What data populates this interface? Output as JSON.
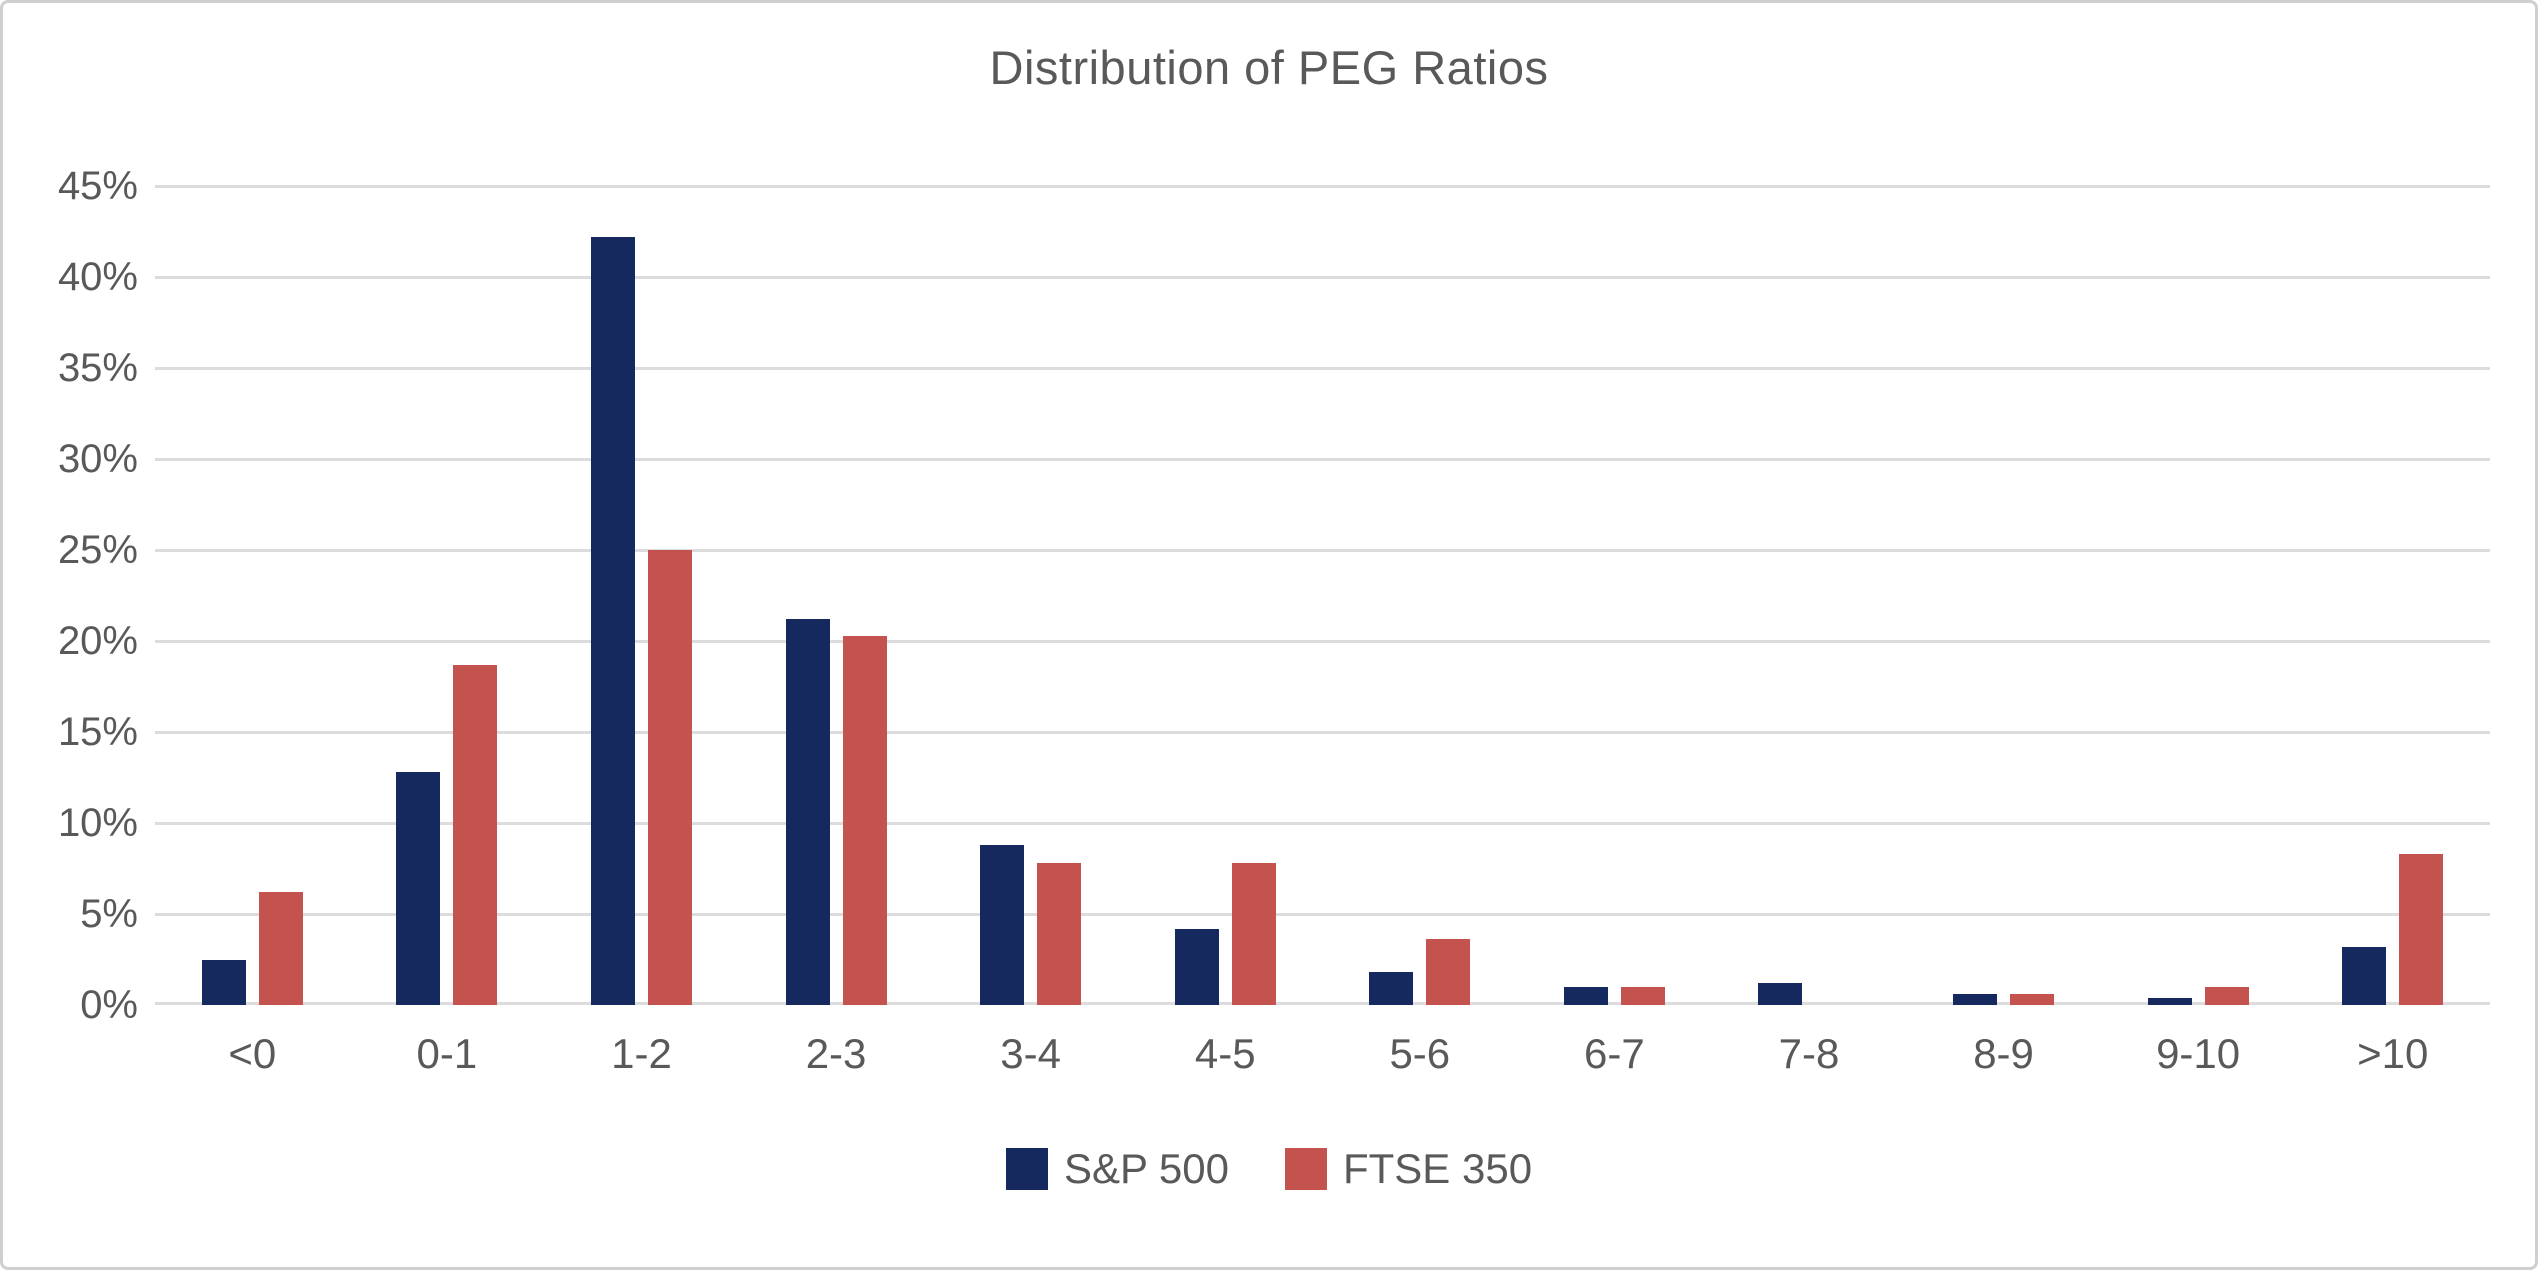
{
  "chart_data": {
    "type": "bar",
    "title": "Distribution of PEG Ratios",
    "categories": [
      "<0",
      "0-1",
      "1-2",
      "2-3",
      "3-4",
      "4-5",
      "5-6",
      "6-7",
      "7-8",
      "8-9",
      "9-10",
      ">10"
    ],
    "series": [
      {
        "name": "S&P 500",
        "color": "#15295f",
        "values": [
          2.5,
          12.8,
          42.2,
          21.2,
          8.8,
          4.2,
          1.8,
          1.0,
          1.2,
          0.6,
          0.4,
          3.2
        ]
      },
      {
        "name": "FTSE 350",
        "color": "#c4524e",
        "values": [
          6.2,
          18.7,
          25.0,
          20.3,
          7.8,
          7.8,
          3.6,
          1.0,
          0,
          0.6,
          1.0,
          8.3
        ]
      }
    ],
    "y_axis": {
      "min": 0,
      "max": 45,
      "step": 5,
      "tick_labels_top_to_bottom": [
        "45%",
        "40%",
        "35%",
        "30%",
        "25%",
        "20%",
        "15%",
        "10%",
        "5%",
        "0%"
      ]
    },
    "grid": true,
    "legend_position": "bottom",
    "xlabel": "",
    "ylabel": ""
  },
  "colors": {
    "gridline": "#dcdcdc",
    "text": "#595959",
    "frame_border": "#cfcfcf",
    "background": "#ffffff"
  }
}
